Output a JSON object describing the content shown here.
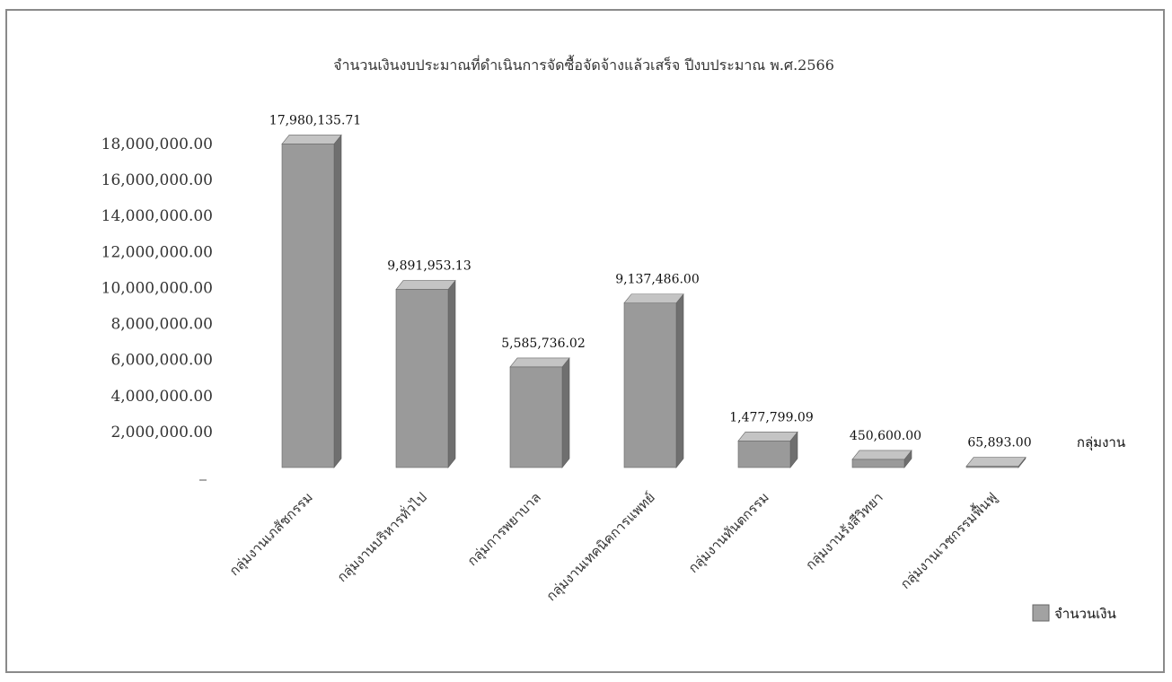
{
  "chart_data": {
    "type": "bar",
    "title": "จำนวนเงินงบประมาณที่ดำเนินการจัดซื้อจัดจ้างแล้วเสร็จ ปีงบประมาณ พ.ศ.2566",
    "xlabel": "กลุ่มงาน",
    "ylabel": "",
    "ylim": [
      0,
      18000000
    ],
    "yticks": [
      "2,000,000.00",
      "4,000,000.00",
      "6,000,000.00",
      "8,000,000.00",
      "10,000,000.00",
      "12,000,000.00",
      "14,000,000.00",
      "16,000,000.00",
      "18,000,000.00"
    ],
    "categories": [
      "กลุ่มงานเภสัชกรรม",
      "กลุ่มงานบริหารทั่วไป",
      "กลุ่มการพยาบาล",
      "กลุ่มงานเทคนิคการแพทย์",
      "กลุ่มงานทันตกรรม",
      "กลุ่มงานรังสีวิทยา",
      "กลุ่มงานเวชกรรมฟื้นฟู"
    ],
    "series": [
      {
        "name": "จำนวนเงิน",
        "values": [
          17980135.71,
          9891953.13,
          5585736.02,
          9137486.0,
          1477799.09,
          450600.0,
          65893.0
        ],
        "labels": [
          "17,980,135.71",
          "9,891,953.13",
          "5,585,736.02",
          "9,137,486.00",
          "1,477,799.09",
          "450,600.00",
          "65,893.00"
        ]
      }
    ],
    "legend_position": "bottom-right",
    "grid": false,
    "style": "3d-bar",
    "bar_color": "#9a9a9a"
  }
}
